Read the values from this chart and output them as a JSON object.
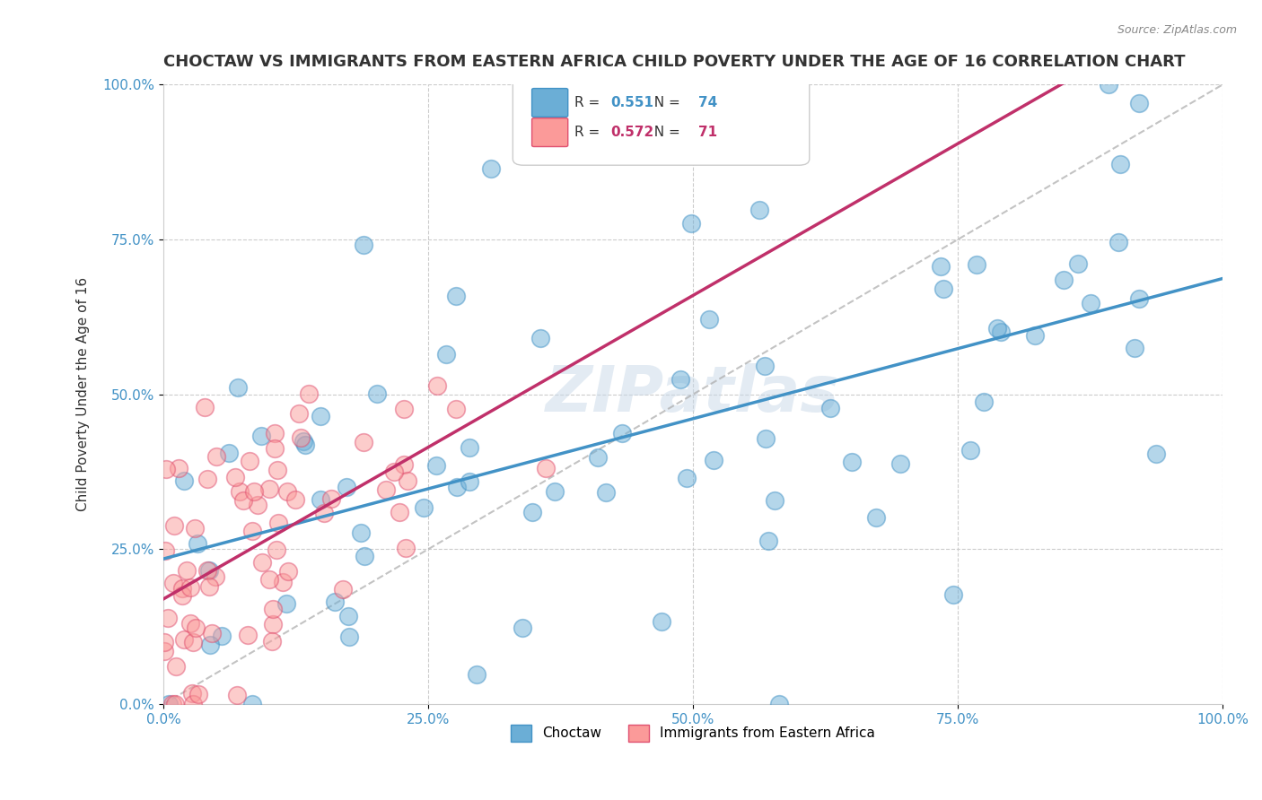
{
  "title": "CHOCTAW VS IMMIGRANTS FROM EASTERN AFRICA CHILD POVERTY UNDER THE AGE OF 16 CORRELATION CHART",
  "source": "Source: ZipAtlas.com",
  "ylabel": "Child Poverty Under the Age of 16",
  "xlim": [
    0.0,
    1.0
  ],
  "ylim": [
    0.0,
    1.0
  ],
  "xticks": [
    0.0,
    0.25,
    0.5,
    0.75,
    1.0
  ],
  "yticks": [
    0.0,
    0.25,
    0.5,
    0.75,
    1.0
  ],
  "xtick_labels": [
    "0.0%",
    "25.0%",
    "50.0%",
    "75.0%",
    "100.0%"
  ],
  "ytick_labels": [
    "0.0%",
    "25.0%",
    "50.0%",
    "75.0%",
    "100.0%"
  ],
  "choctaw_color": "#6baed6",
  "choctaw_edge": "#4292c6",
  "eastern_africa_color": "#fb9a99",
  "eastern_africa_edge": "#e05070",
  "choctaw_R": 0.551,
  "choctaw_N": 74,
  "eastern_africa_R": 0.572,
  "eastern_africa_N": 71,
  "legend_label_choctaw": "Choctaw",
  "legend_label_east": "Immigrants from Eastern Africa",
  "watermark": "ZIPatlas",
  "background_color": "#ffffff",
  "grid_color": "#cccccc",
  "title_fontsize": 13,
  "axis_label_fontsize": 11,
  "tick_fontsize": 11
}
